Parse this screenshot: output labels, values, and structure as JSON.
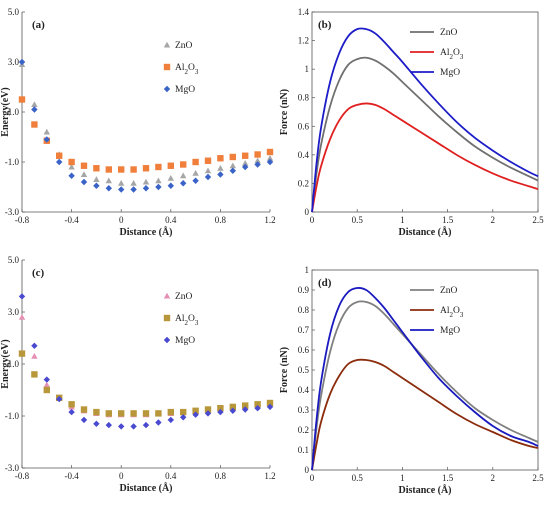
{
  "chart_data": [
    {
      "panel": "a",
      "type": "scatter",
      "label": "(a)",
      "xlabel": "Distance (Å)",
      "ylabel": "Energy(eV)",
      "xlim": [
        -0.8,
        1.2
      ],
      "ylim": [
        -3.0,
        5.0
      ],
      "xticks": [
        -0.8,
        -0.4,
        0,
        0.4,
        0.8,
        1.2
      ],
      "xtick_labels": [
        "-0.8",
        "-0.4",
        "0",
        "0.4",
        "0.8",
        "1.2"
      ],
      "yticks": [
        -3.0,
        -1.0,
        1.0,
        3.0,
        5.0
      ],
      "ytick_labels": [
        "-3.0",
        "-1.0",
        "1.0",
        "3.0",
        "5.0"
      ],
      "legend": "right-upper",
      "series": [
        {
          "name": "ZnO",
          "label_sub": "",
          "color": "#a6a6a6",
          "marker": "triangle",
          "x": [
            -0.8,
            -0.7,
            -0.6,
            -0.5,
            -0.4,
            -0.3,
            -0.2,
            -0.1,
            0.0,
            0.1,
            0.2,
            0.3,
            0.4,
            0.5,
            0.6,
            0.7,
            0.8,
            0.9,
            1.0,
            1.1,
            1.2
          ],
          "y": [
            2.9,
            1.3,
            0.2,
            -0.7,
            -1.2,
            -1.5,
            -1.7,
            -1.75,
            -1.85,
            -1.85,
            -1.8,
            -1.75,
            -1.65,
            -1.55,
            -1.45,
            -1.35,
            -1.25,
            -1.15,
            -1.05,
            -0.95,
            -0.85
          ]
        },
        {
          "name": "Al",
          "label_sub": "2",
          "label_mid": "O",
          "label_sub2": "3",
          "color": "#f07f3c",
          "marker": "square",
          "x": [
            -0.8,
            -0.7,
            -0.6,
            -0.5,
            -0.4,
            -0.3,
            -0.2,
            -0.1,
            0.0,
            0.1,
            0.2,
            0.3,
            0.4,
            0.5,
            0.6,
            0.7,
            0.8,
            0.9,
            1.0,
            1.1,
            1.2
          ],
          "y": [
            1.5,
            0.5,
            -0.15,
            -0.75,
            -1.0,
            -1.15,
            -1.25,
            -1.3,
            -1.3,
            -1.3,
            -1.25,
            -1.2,
            -1.15,
            -1.1,
            -1.0,
            -0.95,
            -0.85,
            -0.8,
            -0.75,
            -0.7,
            -0.6
          ]
        },
        {
          "name": "MgO",
          "label_sub": "",
          "color": "#3a63c8",
          "marker": "diamond",
          "x": [
            -0.8,
            -0.7,
            -0.6,
            -0.5,
            -0.4,
            -0.3,
            -0.2,
            -0.1,
            0.0,
            0.1,
            0.2,
            0.3,
            0.4,
            0.5,
            0.6,
            0.7,
            0.8,
            0.9,
            1.0,
            1.1,
            1.2
          ],
          "y": [
            3.0,
            1.1,
            -0.1,
            -1.0,
            -1.55,
            -1.8,
            -1.95,
            -2.05,
            -2.1,
            -2.1,
            -2.05,
            -2.0,
            -1.95,
            -1.85,
            -1.75,
            -1.6,
            -1.5,
            -1.35,
            -1.2,
            -1.1,
            -1.0
          ]
        }
      ]
    },
    {
      "panel": "b",
      "type": "line",
      "label": "(b)",
      "xlabel": "Distance (Å)",
      "ylabel": "Force (nN)",
      "xlim": [
        0,
        2.5
      ],
      "ylim": [
        0,
        1.4
      ],
      "xticks": [
        0,
        0.5,
        1,
        1.5,
        2,
        2.5
      ],
      "xtick_labels": [
        "0",
        "0.5",
        "1",
        "1.5",
        "2",
        "2.5"
      ],
      "yticks": [
        0,
        0.2,
        0.4,
        0.6,
        0.8,
        1,
        1.2,
        1.4
      ],
      "ytick_labels": [
        "0",
        "0.2",
        "0.4",
        "0.6",
        "0.8",
        "1",
        "1.2",
        "1.4"
      ],
      "legend": "top-right",
      "series": [
        {
          "name": "ZnO",
          "label_sub": "",
          "color": "#707070",
          "x": [
            0,
            0.05,
            0.1,
            0.2,
            0.3,
            0.4,
            0.5,
            0.6,
            0.7,
            0.8,
            0.9,
            1.0,
            1.2,
            1.4,
            1.6,
            1.8,
            2.0,
            2.2,
            2.4,
            2.5
          ],
          "y": [
            0,
            0.27,
            0.47,
            0.74,
            0.92,
            1.03,
            1.07,
            1.08,
            1.06,
            1.02,
            0.97,
            0.91,
            0.79,
            0.67,
            0.56,
            0.46,
            0.38,
            0.31,
            0.25,
            0.22
          ]
        },
        {
          "name": "Al",
          "label_sub": "2",
          "label_mid": "O",
          "label_sub2": "3",
          "color": "#e02020",
          "x": [
            0,
            0.05,
            0.1,
            0.2,
            0.3,
            0.4,
            0.5,
            0.6,
            0.7,
            0.8,
            0.9,
            1.0,
            1.2,
            1.4,
            1.6,
            1.8,
            2.0,
            2.2,
            2.4,
            2.5
          ],
          "y": [
            0,
            0.18,
            0.32,
            0.51,
            0.64,
            0.72,
            0.75,
            0.76,
            0.75,
            0.72,
            0.68,
            0.64,
            0.56,
            0.48,
            0.4,
            0.33,
            0.27,
            0.22,
            0.18,
            0.16
          ]
        },
        {
          "name": "MgO",
          "label_sub": "",
          "color": "#1c1cc8",
          "x": [
            0,
            0.05,
            0.1,
            0.2,
            0.3,
            0.4,
            0.5,
            0.6,
            0.7,
            0.8,
            0.9,
            1.0,
            1.2,
            1.4,
            1.6,
            1.8,
            2.0,
            2.2,
            2.4,
            2.5
          ],
          "y": [
            0,
            0.34,
            0.59,
            0.91,
            1.11,
            1.23,
            1.28,
            1.28,
            1.25,
            1.19,
            1.12,
            1.05,
            0.9,
            0.76,
            0.63,
            0.52,
            0.43,
            0.35,
            0.28,
            0.25
          ]
        }
      ]
    },
    {
      "panel": "c",
      "type": "scatter",
      "label": "(c)",
      "xlabel": "Distance (Å)",
      "ylabel": "Energy(eV)",
      "xlim": [
        -0.8,
        1.2
      ],
      "ylim": [
        -3.0,
        5.0
      ],
      "xticks": [
        -0.8,
        -0.4,
        0,
        0.4,
        0.8,
        1.2
      ],
      "xtick_labels": [
        "-0.8",
        "-0.4",
        "0",
        "0.4",
        "0.8",
        "1.2"
      ],
      "yticks": [
        -3.0,
        -1.0,
        1.0,
        3.0,
        5.0
      ],
      "ytick_labels": [
        "-3.0",
        "-1.0",
        "1.0",
        "3.0",
        "5.0"
      ],
      "legend": "right-upper",
      "series": [
        {
          "name": "ZnO",
          "label_sub": "",
          "color": "#e58fb3",
          "marker": "triangle",
          "x": [
            -0.8,
            -0.7,
            -0.6,
            -0.5,
            -0.4,
            -0.3,
            -0.2,
            -0.1,
            0.0,
            0.1,
            0.2,
            0.3,
            0.4,
            0.5,
            0.6,
            0.7,
            0.8,
            0.9,
            1.0,
            1.1,
            1.2
          ],
          "y": [
            2.8,
            1.3,
            0.2,
            -0.3,
            -0.65,
            -0.8,
            -0.9,
            -0.95,
            -0.95,
            -0.95,
            -0.95,
            -0.9,
            -0.9,
            -0.85,
            -0.8,
            -0.75,
            -0.7,
            -0.65,
            -0.6,
            -0.55,
            -0.5
          ]
        },
        {
          "name": "Al",
          "label_sub": "2",
          "label_mid": "O",
          "label_sub2": "3",
          "color": "#b8973a",
          "marker": "square",
          "x": [
            -0.8,
            -0.7,
            -0.6,
            -0.5,
            -0.4,
            -0.3,
            -0.2,
            -0.1,
            0.0,
            0.1,
            0.2,
            0.3,
            0.4,
            0.5,
            0.6,
            0.7,
            0.8,
            0.9,
            1.0,
            1.1,
            1.2
          ],
          "y": [
            1.4,
            0.6,
            0.0,
            -0.3,
            -0.55,
            -0.75,
            -0.85,
            -0.9,
            -0.9,
            -0.9,
            -0.9,
            -0.9,
            -0.85,
            -0.85,
            -0.8,
            -0.75,
            -0.7,
            -0.65,
            -0.6,
            -0.55,
            -0.5
          ]
        },
        {
          "name": "MgO",
          "label_sub": "",
          "color": "#4a4ad0",
          "marker": "diamond",
          "x": [
            -0.8,
            -0.7,
            -0.6,
            -0.5,
            -0.4,
            -0.3,
            -0.2,
            -0.1,
            0.0,
            0.1,
            0.2,
            0.3,
            0.4,
            0.5,
            0.6,
            0.7,
            0.8,
            0.9,
            1.0,
            1.1,
            1.2
          ],
          "y": [
            3.6,
            1.7,
            0.4,
            -0.35,
            -0.85,
            -1.15,
            -1.3,
            -1.35,
            -1.4,
            -1.4,
            -1.35,
            -1.25,
            -1.15,
            -1.05,
            -0.95,
            -0.9,
            -0.85,
            -0.8,
            -0.75,
            -0.7,
            -0.65
          ]
        }
      ]
    },
    {
      "panel": "d",
      "type": "line",
      "label": "(d)",
      "xlabel": "Distance (Å)",
      "ylabel": "Force (nN)",
      "xlim": [
        0,
        2.5
      ],
      "ylim": [
        0,
        1.0
      ],
      "xticks": [
        0,
        0.5,
        1,
        1.5,
        2,
        2.5
      ],
      "xtick_labels": [
        "0",
        "0.5",
        "1",
        "1.5",
        "2",
        "2.5"
      ],
      "yticks": [
        0,
        0.1,
        0.2,
        0.3,
        0.4,
        0.5,
        0.6,
        0.7,
        0.8,
        0.9,
        1
      ],
      "ytick_labels": [
        "0",
        "0.1",
        "0.2",
        "0.3",
        "0.4",
        "0.5",
        "0.6",
        "0.7",
        "0.8",
        "0.9",
        "1"
      ],
      "legend": "top-right",
      "series": [
        {
          "name": "ZnO",
          "label_sub": "",
          "color": "#808080",
          "x": [
            0,
            0.05,
            0.1,
            0.2,
            0.3,
            0.4,
            0.5,
            0.6,
            0.7,
            0.8,
            0.9,
            1.0,
            1.2,
            1.4,
            1.6,
            1.8,
            2.0,
            2.2,
            2.4,
            2.5
          ],
          "y": [
            0,
            0.21,
            0.37,
            0.59,
            0.73,
            0.81,
            0.84,
            0.84,
            0.82,
            0.78,
            0.73,
            0.68,
            0.58,
            0.48,
            0.39,
            0.31,
            0.25,
            0.2,
            0.16,
            0.14
          ]
        },
        {
          "name": "Al",
          "label_sub": "2",
          "label_mid": "O",
          "label_sub2": "3",
          "color": "#8b2c0c",
          "x": [
            0,
            0.05,
            0.1,
            0.2,
            0.3,
            0.4,
            0.5,
            0.6,
            0.7,
            0.8,
            0.9,
            1.0,
            1.2,
            1.4,
            1.6,
            1.8,
            2.0,
            2.2,
            2.4,
            2.5
          ],
          "y": [
            0,
            0.13,
            0.24,
            0.38,
            0.47,
            0.53,
            0.55,
            0.55,
            0.54,
            0.52,
            0.49,
            0.46,
            0.4,
            0.34,
            0.28,
            0.23,
            0.19,
            0.15,
            0.12,
            0.11
          ]
        },
        {
          "name": "MgO",
          "label_sub": "",
          "color": "#1a1abf",
          "x": [
            0,
            0.05,
            0.1,
            0.2,
            0.3,
            0.4,
            0.5,
            0.6,
            0.7,
            0.8,
            0.9,
            1.0,
            1.2,
            1.4,
            1.6,
            1.8,
            2.0,
            2.2,
            2.4,
            2.5
          ],
          "y": [
            0,
            0.25,
            0.44,
            0.68,
            0.82,
            0.89,
            0.91,
            0.9,
            0.86,
            0.81,
            0.75,
            0.69,
            0.57,
            0.46,
            0.37,
            0.29,
            0.22,
            0.17,
            0.14,
            0.12
          ]
        }
      ]
    }
  ]
}
